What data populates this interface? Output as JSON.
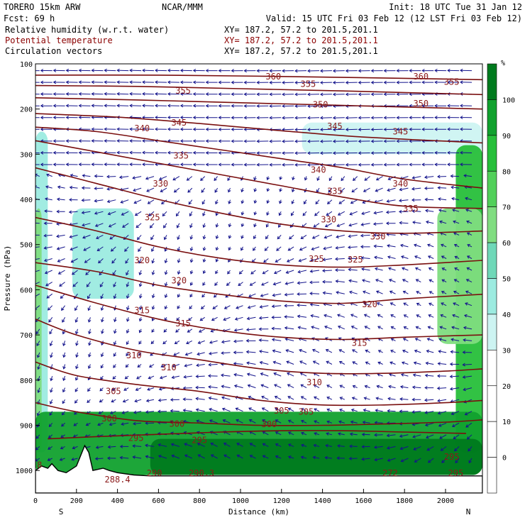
{
  "header": {
    "model": "TORERO  15km ARW",
    "org": "NCAR/MMM",
    "init": "Init: 18 UTC Tue 31 Jan 12",
    "fcst": "Fcst:   69 h",
    "valid": "Valid: 15 UTC Fri 03 Feb 12 (12 LST Fri 03 Feb 12)",
    "fields": [
      {
        "name": "Relative humidity (w.r.t. water)",
        "xy": "XY= 187.2, 57.2 to 201.5,201.1",
        "color": "#000000"
      },
      {
        "name": "Potential temperature",
        "xy": "XY= 187.2, 57.2 to 201.5,201.1",
        "color": "#8b0000"
      },
      {
        "name": "Circulation vectors",
        "xy": "XY= 187.2, 57.2 to 201.5,201.1",
        "color": "#000000"
      }
    ]
  },
  "chart_data": {
    "type": "heatmap",
    "title": "",
    "xlabel": "Distance (km)",
    "ylabel": "Pressure (hPa)",
    "xlim": [
      0,
      2180
    ],
    "ylim": [
      1050,
      100
    ],
    "x_ticks": [
      "0",
      "200",
      "400",
      "600",
      "800",
      "1000",
      "1200",
      "1400",
      "1600",
      "1800",
      "2000"
    ],
    "y_ticks": [
      "100",
      "200",
      "300",
      "400",
      "500",
      "600",
      "700",
      "800",
      "900",
      "1000"
    ],
    "end_labels": {
      "left": "S",
      "right": "N"
    },
    "colorbar": {
      "unit": "%",
      "levels": [
        "100",
        "90",
        "80",
        "70",
        "60",
        "50",
        "40",
        "30",
        "20",
        "10",
        "0"
      ],
      "colors": [
        "#007a1e",
        "#11a12e",
        "#27bf3a",
        "#52d05a",
        "#80dd80",
        "#6fd8b8",
        "#9cebe0",
        "#cdf4f2",
        "#ffffff",
        "#ffffff",
        "#ffffff"
      ]
    },
    "theta_contours": [
      {
        "value": 295,
        "points": [
          [
            60,
            930
          ],
          [
            300,
            925
          ],
          [
            600,
            920
          ],
          [
            900,
            915
          ],
          [
            1200,
            912
          ],
          [
            1500,
            912
          ],
          [
            1800,
            915
          ],
          [
            2100,
            918
          ]
        ]
      },
      {
        "value": 300,
        "points": [
          [
            0,
            850
          ],
          [
            200,
            870
          ],
          [
            500,
            890
          ],
          [
            800,
            895
          ],
          [
            1100,
            900
          ],
          [
            1400,
            900
          ],
          [
            1700,
            897
          ],
          [
            2000,
            893
          ],
          [
            2180,
            888
          ]
        ]
      },
      {
        "value": 305,
        "points": [
          [
            0,
            760
          ],
          [
            200,
            790
          ],
          [
            500,
            810
          ],
          [
            800,
            825
          ],
          [
            1100,
            845
          ],
          [
            1400,
            855
          ],
          [
            1700,
            855
          ],
          [
            2000,
            850
          ],
          [
            2180,
            845
          ]
        ]
      },
      {
        "value": 310,
        "points": [
          [
            0,
            665
          ],
          [
            200,
            700
          ],
          [
            500,
            735
          ],
          [
            800,
            755
          ],
          [
            1100,
            775
          ],
          [
            1400,
            785
          ],
          [
            1700,
            785
          ],
          [
            2000,
            780
          ],
          [
            2180,
            775
          ]
        ]
      },
      {
        "value": 315,
        "points": [
          [
            0,
            590
          ],
          [
            300,
            630
          ],
          [
            600,
            665
          ],
          [
            900,
            690
          ],
          [
            1200,
            705
          ],
          [
            1500,
            710
          ],
          [
            1800,
            705
          ],
          [
            2180,
            700
          ]
        ]
      },
      {
        "value": 320,
        "points": [
          [
            0,
            540
          ],
          [
            300,
            560
          ],
          [
            600,
            590
          ],
          [
            900,
            610
          ],
          [
            1200,
            625
          ],
          [
            1500,
            630
          ],
          [
            1800,
            620
          ],
          [
            2180,
            610
          ]
        ]
      },
      {
        "value": 325,
        "points": [
          [
            0,
            440
          ],
          [
            300,
            470
          ],
          [
            600,
            505
          ],
          [
            900,
            530
          ],
          [
            1200,
            545
          ],
          [
            1500,
            550
          ],
          [
            1800,
            545
          ],
          [
            2180,
            535
          ]
        ]
      },
      {
        "value": 330,
        "points": [
          [
            0,
            330
          ],
          [
            300,
            365
          ],
          [
            600,
            400
          ],
          [
            900,
            430
          ],
          [
            1200,
            455
          ],
          [
            1500,
            470
          ],
          [
            1800,
            475
          ],
          [
            2180,
            470
          ]
        ]
      },
      {
        "value": 335,
        "points": [
          [
            0,
            270
          ],
          [
            300,
            295
          ],
          [
            600,
            320
          ],
          [
            900,
            345
          ],
          [
            1200,
            370
          ],
          [
            1500,
            395
          ],
          [
            1800,
            415
          ],
          [
            2180,
            420
          ]
        ]
      },
      {
        "value": 340,
        "points": [
          [
            0,
            240
          ],
          [
            300,
            250
          ],
          [
            600,
            270
          ],
          [
            900,
            290
          ],
          [
            1200,
            310
          ],
          [
            1500,
            330
          ],
          [
            1800,
            355
          ],
          [
            2180,
            375
          ]
        ]
      },
      {
        "value": 345,
        "points": [
          [
            0,
            210
          ],
          [
            400,
            218
          ],
          [
            800,
            232
          ],
          [
            1200,
            248
          ],
          [
            1600,
            262
          ],
          [
            2180,
            275
          ]
        ]
      },
      {
        "value": 350,
        "points": [
          [
            0,
            175
          ],
          [
            500,
            180
          ],
          [
            1000,
            186
          ],
          [
            1500,
            192
          ],
          [
            2180,
            200
          ]
        ]
      },
      {
        "value": 355,
        "points": [
          [
            0,
            148
          ],
          [
            500,
            150
          ],
          [
            1000,
            155
          ],
          [
            1500,
            160
          ],
          [
            2180,
            168
          ]
        ]
      },
      {
        "value": 360,
        "points": [
          [
            0,
            125
          ],
          [
            600,
            125
          ],
          [
            1200,
            128
          ],
          [
            1800,
            132
          ],
          [
            2180,
            135
          ]
        ]
      }
    ],
    "contour_labels": [
      {
        "text": "360",
        "x": 1160,
        "p": 128
      },
      {
        "text": "360",
        "x": 1880,
        "p": 128
      },
      {
        "text": "355",
        "x": 720,
        "p": 160
      },
      {
        "text": "355",
        "x": 1330,
        "p": 145
      },
      {
        "text": "355",
        "x": 2030,
        "p": 140
      },
      {
        "text": "350",
        "x": 1390,
        "p": 190
      },
      {
        "text": "350",
        "x": 1880,
        "p": 188
      },
      {
        "text": "345",
        "x": 700,
        "p": 230
      },
      {
        "text": "345",
        "x": 1460,
        "p": 238
      },
      {
        "text": "345",
        "x": 1780,
        "p": 250
      },
      {
        "text": "340",
        "x": 520,
        "p": 243
      },
      {
        "text": "340",
        "x": 1380,
        "p": 335
      },
      {
        "text": "340",
        "x": 1780,
        "p": 365
      },
      {
        "text": "335",
        "x": 710,
        "p": 303
      },
      {
        "text": "335",
        "x": 1460,
        "p": 382
      },
      {
        "text": "335",
        "x": 1830,
        "p": 420
      },
      {
        "text": "330",
        "x": 610,
        "p": 365
      },
      {
        "text": "330",
        "x": 1430,
        "p": 445
      },
      {
        "text": "330",
        "x": 1670,
        "p": 482
      },
      {
        "text": "325",
        "x": 570,
        "p": 440
      },
      {
        "text": "325",
        "x": 1370,
        "p": 532
      },
      {
        "text": "325",
        "x": 1560,
        "p": 533
      },
      {
        "text": "320",
        "x": 520,
        "p": 535
      },
      {
        "text": "320",
        "x": 700,
        "p": 580
      },
      {
        "text": "320",
        "x": 1630,
        "p": 632
      },
      {
        "text": "315",
        "x": 520,
        "p": 646
      },
      {
        "text": "315",
        "x": 720,
        "p": 675
      },
      {
        "text": "315",
        "x": 1580,
        "p": 718
      },
      {
        "text": "310",
        "x": 480,
        "p": 745
      },
      {
        "text": "310",
        "x": 650,
        "p": 772
      },
      {
        "text": "310",
        "x": 1360,
        "p": 805
      },
      {
        "text": "305",
        "x": 380,
        "p": 825
      },
      {
        "text": "305",
        "x": 1200,
        "p": 868
      },
      {
        "text": "305",
        "x": 1320,
        "p": 870
      },
      {
        "text": "300",
        "x": 360,
        "p": 885
      },
      {
        "text": "300",
        "x": 690,
        "p": 897
      },
      {
        "text": "300",
        "x": 1140,
        "p": 898
      },
      {
        "text": "295",
        "x": 490,
        "p": 928
      },
      {
        "text": "295",
        "x": 800,
        "p": 933
      },
      {
        "text": "295",
        "x": 2030,
        "p": 970
      },
      {
        "text": "290",
        "x": 580,
        "p": 1006
      },
      {
        "text": "290.3",
        "x": 810,
        "p": 1006
      },
      {
        "text": "272",
        "x": 1730,
        "p": 1006
      },
      {
        "text": "295",
        "x": 2050,
        "p": 1006
      },
      {
        "text": "288.4",
        "x": 400,
        "p": 1020
      },
      {
        "text": "8",
        "x": 20,
        "p": 988
      }
    ],
    "moist_regions": [
      {
        "level": 40,
        "color": "#9cebe0",
        "area": "left column",
        "x": [
          0,
          60
        ],
        "p": [
          250,
          960
        ]
      },
      {
        "level": 60,
        "color": "#80dd80",
        "area": "left column",
        "x": [
          0,
          30
        ],
        "p": [
          420,
          960
        ]
      },
      {
        "level": 40,
        "color": "#9cebe0",
        "area": "mid-level plume",
        "x": [
          180,
          480
        ],
        "p": [
          420,
          620
        ]
      },
      {
        "level": 30,
        "color": "#cdf4f2",
        "area": "upper band",
        "x": [
          1300,
          2180
        ],
        "p": [
          230,
          300
        ]
      },
      {
        "level": 80,
        "color": "#27bf3a",
        "area": "right column",
        "x": [
          2050,
          2180
        ],
        "p": [
          280,
          960
        ]
      },
      {
        "level": 60,
        "color": "#80dd80",
        "area": "right column",
        "x": [
          1960,
          2180
        ],
        "p": [
          420,
          720
        ]
      },
      {
        "level": 90,
        "color": "#11a12e",
        "area": "boundary layer",
        "x": [
          0,
          2180
        ],
        "p": [
          870,
          1010
        ]
      },
      {
        "level": 100,
        "color": "#007a1e",
        "area": "surface layer",
        "x": [
          560,
          2180
        ],
        "p": [
          930,
          1010
        ]
      }
    ],
    "terrain": [
      [
        0,
        1050
      ],
      [
        0,
        1000
      ],
      [
        30,
        990
      ],
      [
        60,
        995
      ],
      [
        80,
        985
      ],
      [
        110,
        1000
      ],
      [
        150,
        1005
      ],
      [
        200,
        990
      ],
      [
        240,
        945
      ],
      [
        260,
        960
      ],
      [
        280,
        1000
      ],
      [
        330,
        995
      ],
      [
        360,
        1000
      ],
      [
        400,
        1005
      ],
      [
        480,
        1010
      ],
      [
        560,
        1012
      ],
      [
        2180,
        1012
      ],
      [
        2180,
        1050
      ]
    ]
  }
}
